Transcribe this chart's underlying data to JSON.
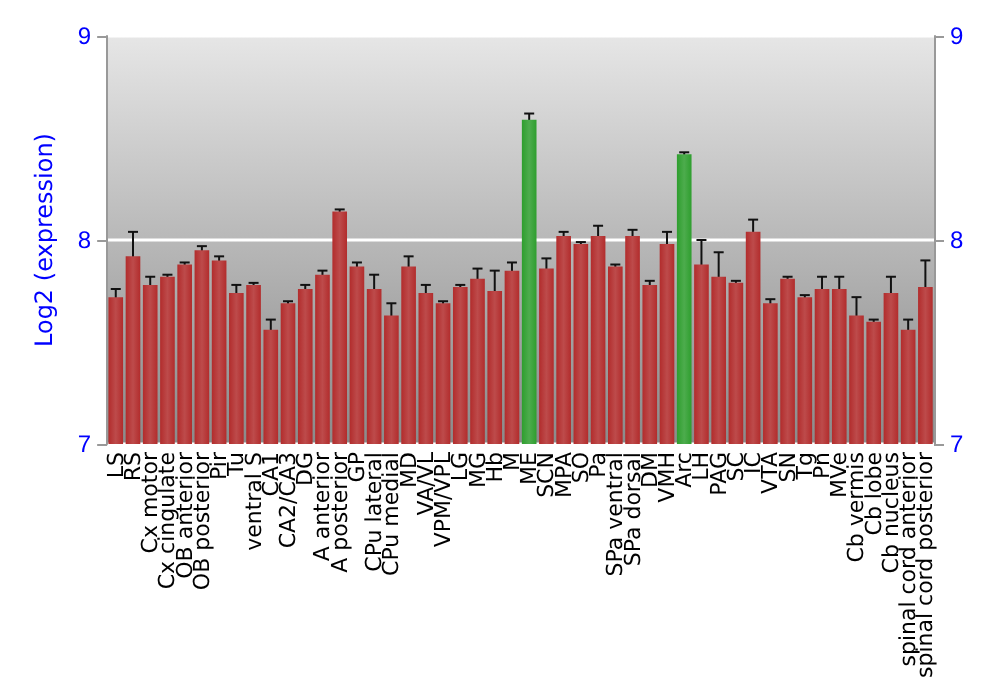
{
  "chart_data": {
    "type": "bar",
    "ylabel": "Log2 (expression)",
    "categories": [
      "LS",
      "RS",
      "Cx motor",
      "Cx cingulate",
      "OB anterior",
      "OB posterior",
      "Pir",
      "Tu",
      "ventral S",
      "CA1",
      "CA2/CA3",
      "DG",
      "A anterior",
      "A posterior",
      "GP",
      "CPu lateral",
      "CPu medial",
      "MD",
      "VA/VL",
      "VPM/VPL",
      "LG",
      "MG",
      "Hb",
      "M",
      "ME",
      "SCN",
      "MPA",
      "SO",
      "Pa",
      "SPa ventral",
      "SPa dorsal",
      "DM",
      "VMH",
      "Arc",
      "LH",
      "PAG",
      "SC",
      "IC",
      "VTA",
      "SN",
      "Tg",
      "Pn",
      "MVe",
      "Cb vermis",
      "Cb lobe",
      "Cb nucleus",
      "spinal cord anterior",
      "spinal cord posterior"
    ],
    "values": [
      7.72,
      7.92,
      7.78,
      7.82,
      7.88,
      7.95,
      7.9,
      7.74,
      7.78,
      7.56,
      7.69,
      7.76,
      7.83,
      8.14,
      7.87,
      7.76,
      7.63,
      7.87,
      7.74,
      7.69,
      7.77,
      7.81,
      7.75,
      7.85,
      8.59,
      7.86,
      8.02,
      7.98,
      8.02,
      7.87,
      8.02,
      7.78,
      7.98,
      8.42,
      7.88,
      7.82,
      7.79,
      8.04,
      7.69,
      7.81,
      7.72,
      7.76,
      7.76,
      7.63,
      7.6,
      7.74,
      7.56,
      7.77
    ],
    "errors": [
      0.04,
      0.12,
      0.04,
      0.01,
      0.01,
      0.02,
      0.02,
      0.04,
      0.01,
      0.05,
      0.01,
      0.02,
      0.02,
      0.01,
      0.02,
      0.07,
      0.06,
      0.05,
      0.04,
      0.01,
      0.01,
      0.05,
      0.1,
      0.04,
      0.03,
      0.05,
      0.02,
      0.01,
      0.05,
      0.01,
      0.03,
      0.02,
      0.06,
      0.01,
      0.12,
      0.12,
      0.01,
      0.06,
      0.02,
      0.01,
      0.01,
      0.06,
      0.06,
      0.09,
      0.01,
      0.08,
      0.05,
      0.13
    ],
    "colors": [
      "#b22c2c",
      "#b22c2c",
      "#b22c2c",
      "#b22c2c",
      "#b22c2c",
      "#b22c2c",
      "#b22c2c",
      "#b22c2c",
      "#b22c2c",
      "#b22c2c",
      "#b22c2c",
      "#b22c2c",
      "#b22c2c",
      "#b22c2c",
      "#b22c2c",
      "#b22c2c",
      "#b22c2c",
      "#b22c2c",
      "#b22c2c",
      "#b22c2c",
      "#b22c2c",
      "#b22c2c",
      "#b22c2c",
      "#b22c2c",
      "#2e9e2e",
      "#b22c2c",
      "#b22c2c",
      "#b22c2c",
      "#b22c2c",
      "#b22c2c",
      "#b22c2c",
      "#b22c2c",
      "#b22c2c",
      "#2e9e2e",
      "#b22c2c",
      "#b22c2c",
      "#b22c2c",
      "#b22c2c",
      "#b22c2c",
      "#b22c2c",
      "#b22c2c",
      "#b22c2c",
      "#b22c2c",
      "#b22c2c",
      "#b22c2c",
      "#b22c2c",
      "#b22c2c",
      "#b22c2c"
    ],
    "ylim": [
      7,
      9
    ],
    "yticks": [
      7,
      8,
      9
    ],
    "y2lim": [
      7,
      9
    ],
    "y2ticks": [
      7,
      8,
      9
    ],
    "grid": "y"
  }
}
